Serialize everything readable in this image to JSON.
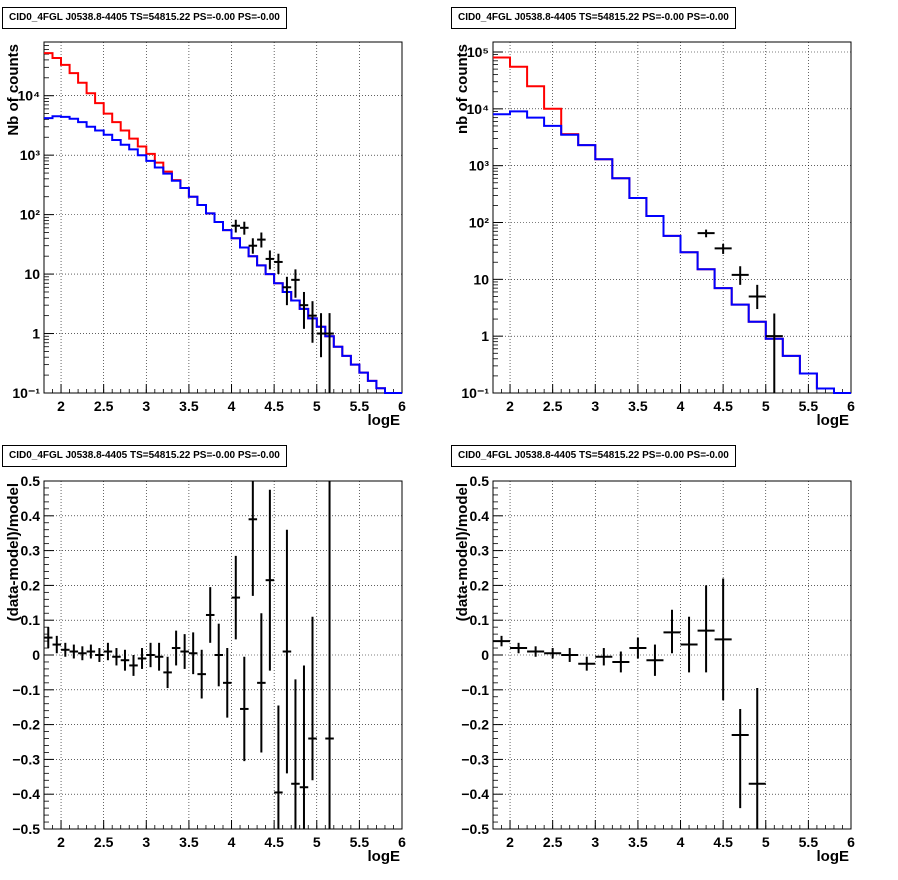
{
  "chart_data": [
    {
      "type": "line",
      "title": "CID0_4FGL J0538.8-4405 TS=54815.22 PS=-0.00 PS=-0.00",
      "xlabel": "logE",
      "ylabel": "Nb of counts",
      "xlim": [
        1.8,
        6.0
      ],
      "ylim": [
        0.1,
        80000
      ],
      "yscale": "log",
      "grid": true,
      "xticks": [
        "2",
        "2.5",
        "3",
        "3.5",
        "4",
        "4.5",
        "5",
        "5.5",
        "6"
      ],
      "yticks": [
        "10⁻¹",
        "1",
        "10",
        "10²",
        "10³",
        "10⁴"
      ],
      "bin_width": 0.1,
      "series": [
        {
          "color": "#ff0000",
          "x": [
            1.8,
            1.9,
            2.0,
            2.1,
            2.2,
            2.3,
            2.4,
            2.5,
            2.6,
            2.7,
            2.8,
            2.9,
            3.0,
            3.1,
            3.2,
            3.3,
            3.4,
            3.5,
            3.6,
            3.7,
            3.8,
            3.9,
            4.0,
            4.1,
            4.2,
            4.3,
            4.4,
            4.5,
            4.6,
            4.7,
            4.8,
            4.9,
            5.0,
            5.1,
            5.2,
            5.3,
            5.4,
            5.5,
            5.6,
            5.7,
            5.8,
            5.9
          ],
          "values": [
            52000,
            43000,
            33000,
            24000,
            16500,
            11000,
            7500,
            5000,
            3600,
            2600,
            1900,
            1400,
            1050,
            750,
            530,
            380,
            280,
            200,
            145,
            105,
            75,
            55,
            40,
            28,
            20,
            14,
            10,
            7,
            5,
            3.6,
            2.6,
            1.8,
            1.3,
            0.9,
            0.6,
            0.42,
            0.3,
            0.22,
            0.16,
            0.12,
            0.1,
            0.1
          ]
        },
        {
          "color": "#0000ff",
          "x": [
            1.8,
            1.9,
            2.0,
            2.1,
            2.2,
            2.3,
            2.4,
            2.5,
            2.6,
            2.7,
            2.8,
            2.9,
            3.0,
            3.1,
            3.2,
            3.3,
            3.4,
            3.5,
            3.6,
            3.7,
            3.8,
            3.9,
            4.0,
            4.1,
            4.2,
            4.3,
            4.4,
            4.5,
            4.6,
            4.7,
            4.8,
            4.9,
            5.0,
            5.1,
            5.2,
            5.3,
            5.4,
            5.5,
            5.6,
            5.7,
            5.8,
            5.9
          ],
          "values": [
            4200,
            4500,
            4400,
            4100,
            3600,
            3000,
            2600,
            2200,
            1800,
            1500,
            1250,
            1000,
            800,
            620,
            490,
            370,
            280,
            200,
            145,
            105,
            75,
            55,
            40,
            28,
            20,
            14,
            10,
            7,
            5,
            3.6,
            2.6,
            1.8,
            1.3,
            0.9,
            0.6,
            0.42,
            0.3,
            0.22,
            0.16,
            0.12,
            0.1,
            0.1
          ]
        }
      ],
      "data_points": {
        "color": "#000000",
        "x": [
          4.05,
          4.15,
          4.25,
          4.35,
          4.45,
          4.55,
          4.65,
          4.75,
          4.85,
          4.95,
          5.05,
          5.15
        ],
        "y": [
          65,
          60,
          30,
          38,
          18,
          16,
          6,
          8,
          3,
          2,
          1,
          1
        ],
        "yerr_low": [
          50,
          46,
          22,
          28,
          12,
          10,
          3,
          4,
          1.2,
          0.7,
          0.4,
          0.1
        ],
        "yerr_high": [
          82,
          76,
          40,
          50,
          25,
          22,
          9,
          12,
          5,
          3.5,
          2.2,
          2.2
        ]
      }
    },
    {
      "type": "line",
      "title": "CID0_4FGL J0538.8-4405 TS=54815.22 PS=-0.00 PS=-0.00",
      "xlabel": "logE",
      "ylabel": "nb of counts",
      "xlim": [
        1.8,
        6.0
      ],
      "ylim": [
        0.1,
        150000
      ],
      "yscale": "log",
      "grid": true,
      "xticks": [
        "2",
        "2.5",
        "3",
        "3.5",
        "4",
        "4.5",
        "5",
        "5.5",
        "6"
      ],
      "yticks": [
        "10⁻¹",
        "1",
        "10",
        "10²",
        "10³",
        "10⁴",
        "10⁵"
      ],
      "bin_width": 0.2,
      "series": [
        {
          "color": "#ff0000",
          "x": [
            1.8,
            2.0,
            2.2,
            2.4,
            2.6,
            2.8,
            3.0,
            3.2,
            3.4,
            3.6,
            3.8,
            4.0,
            4.2,
            4.4,
            4.6,
            4.8,
            5.0,
            5.2,
            5.4,
            5.6,
            5.8
          ],
          "values": [
            80000,
            55000,
            25000,
            10000,
            3600,
            2300,
            1300,
            600,
            270,
            130,
            58,
            30,
            15,
            7,
            3.6,
            1.8,
            0.9,
            0.45,
            0.22,
            0.12,
            0.1
          ]
        },
        {
          "color": "#0000ff",
          "x": [
            1.8,
            2.0,
            2.2,
            2.4,
            2.6,
            2.8,
            3.0,
            3.2,
            3.4,
            3.6,
            3.8,
            4.0,
            4.2,
            4.4,
            4.6,
            4.8,
            5.0,
            5.2,
            5.4,
            5.6,
            5.8
          ],
          "values": [
            8000,
            9000,
            7000,
            5000,
            3500,
            2300,
            1300,
            600,
            270,
            130,
            58,
            30,
            15,
            7,
            3.6,
            1.8,
            0.9,
            0.45,
            0.22,
            0.12,
            0.1
          ]
        }
      ],
      "data_points": {
        "color": "#000000",
        "x": [
          4.3,
          4.5,
          4.7,
          4.9,
          5.1
        ],
        "y": [
          65,
          35,
          12,
          5,
          1
        ],
        "yerr_low": [
          55,
          28,
          8,
          3,
          0.1
        ],
        "yerr_high": [
          75,
          42,
          17,
          8,
          2.5
        ]
      }
    },
    {
      "type": "scatter",
      "title": "CID0_4FGL J0538.8-4405 TS=54815.22 PS=-0.00 PS=-0.00",
      "xlabel": "logE",
      "ylabel": "(data-model)/model",
      "xlim": [
        1.8,
        6.0
      ],
      "ylim": [
        -0.5,
        0.5
      ],
      "grid": true,
      "xticks": [
        "2",
        "2.5",
        "3",
        "3.5",
        "4",
        "4.5",
        "5",
        "5.5",
        "6"
      ],
      "yticks": [
        "−0.5",
        "−0.4",
        "−0.3",
        "−0.2",
        "−0.1",
        "0",
        "0.1",
        "0.2",
        "0.3",
        "0.4",
        "0.5"
      ],
      "xerr": 0.05,
      "points": {
        "x": [
          1.85,
          1.95,
          2.05,
          2.15,
          2.25,
          2.35,
          2.45,
          2.55,
          2.65,
          2.75,
          2.85,
          2.95,
          3.05,
          3.15,
          3.25,
          3.35,
          3.45,
          3.55,
          3.65,
          3.75,
          3.85,
          3.95,
          4.05,
          4.15,
          4.25,
          4.35,
          4.45,
          4.55,
          4.65,
          4.75,
          4.85,
          4.95,
          5.15
        ],
        "y": [
          0.05,
          0.03,
          0.015,
          0.01,
          0.005,
          0.01,
          0.0,
          0.01,
          -0.005,
          -0.015,
          -0.03,
          -0.01,
          0.0,
          -0.005,
          -0.05,
          0.02,
          0.01,
          0.005,
          -0.055,
          0.115,
          0.0,
          -0.08,
          0.165,
          -0.155,
          0.39,
          -0.08,
          0.215,
          -0.395,
          0.01,
          -0.37,
          -0.38,
          -0.24,
          -0.24
        ],
        "yerr_low": [
          0.03,
          0.025,
          0.02,
          0.02,
          0.02,
          0.02,
          0.02,
          0.025,
          0.025,
          0.03,
          0.03,
          0.03,
          0.035,
          0.04,
          0.045,
          0.05,
          0.05,
          0.06,
          0.07,
          0.08,
          0.09,
          0.1,
          0.12,
          0.15,
          0.22,
          0.2,
          0.26,
          0.25,
          0.35,
          0.3,
          0.15,
          0.12,
          0.26
        ],
        "yerr_high": [
          0.03,
          0.025,
          0.02,
          0.02,
          0.02,
          0.02,
          0.02,
          0.025,
          0.025,
          0.03,
          0.03,
          0.03,
          0.035,
          0.04,
          0.045,
          0.05,
          0.05,
          0.06,
          0.07,
          0.08,
          0.09,
          0.1,
          0.12,
          0.15,
          0.22,
          0.2,
          0.26,
          0.25,
          0.35,
          0.3,
          0.35,
          0.35,
          0.75
        ]
      }
    },
    {
      "type": "scatter",
      "title": "CID0_4FGL J0538.8-4405 TS=54815.22 PS=-0.00 PS=-0.00",
      "xlabel": "logE",
      "ylabel": "(data-model)/model",
      "xlim": [
        1.8,
        6.0
      ],
      "ylim": [
        -0.5,
        0.5
      ],
      "grid": true,
      "xticks": [
        "2",
        "2.5",
        "3",
        "3.5",
        "4",
        "4.5",
        "5",
        "5.5",
        "6"
      ],
      "yticks": [
        "−0.5",
        "−0.4",
        "−0.3",
        "−0.2",
        "−0.1",
        "0",
        "0.1",
        "0.2",
        "0.3",
        "0.4",
        "0.5"
      ],
      "xerr": 0.1,
      "points": {
        "x": [
          1.9,
          2.1,
          2.3,
          2.5,
          2.7,
          2.9,
          3.1,
          3.3,
          3.5,
          3.7,
          3.9,
          4.1,
          4.3,
          4.5,
          4.7,
          4.9
        ],
        "y": [
          0.04,
          0.02,
          0.01,
          0.005,
          0.0,
          -0.025,
          -0.005,
          -0.02,
          0.02,
          -0.015,
          0.065,
          0.03,
          0.07,
          0.045,
          -0.23,
          -0.37
        ],
        "yerr_low": [
          0.015,
          0.015,
          0.015,
          0.015,
          0.02,
          0.02,
          0.025,
          0.03,
          0.03,
          0.045,
          0.06,
          0.08,
          0.12,
          0.175,
          0.21,
          0.175
        ],
        "yerr_high": [
          0.015,
          0.015,
          0.015,
          0.015,
          0.02,
          0.02,
          0.025,
          0.03,
          0.03,
          0.045,
          0.065,
          0.08,
          0.13,
          0.175,
          0.075,
          0.275
        ]
      }
    }
  ]
}
